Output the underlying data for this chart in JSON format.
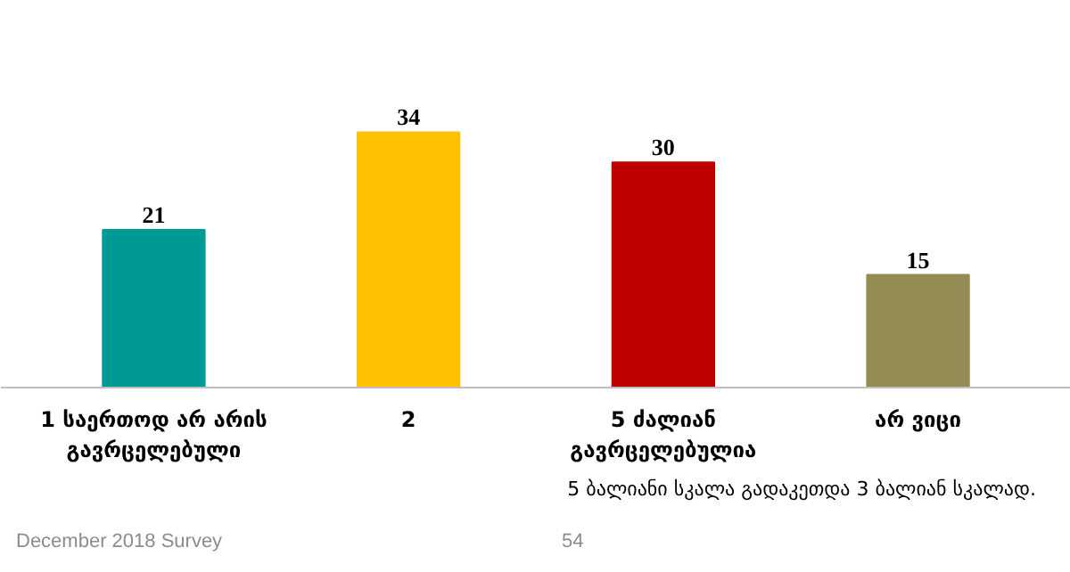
{
  "chart_data": {
    "type": "bar",
    "categories": [
      "1 საერთოდ არ არის\nგავრცელებული",
      "2",
      "5 ძალიან\nგავრცელებულია",
      "არ ვიცი"
    ],
    "values": [
      21,
      34,
      30,
      15
    ],
    "colors": [
      "#009a96",
      "#ffc000",
      "#c00000",
      "#948a54"
    ],
    "tick_labels": "x",
    "data_labels": true,
    "annotations": [
      "5 ბალიანი სკალა გადაკეთდა 3 ბალიან სკალად.",
      "December 2018 Survey",
      "54"
    ]
  }
}
